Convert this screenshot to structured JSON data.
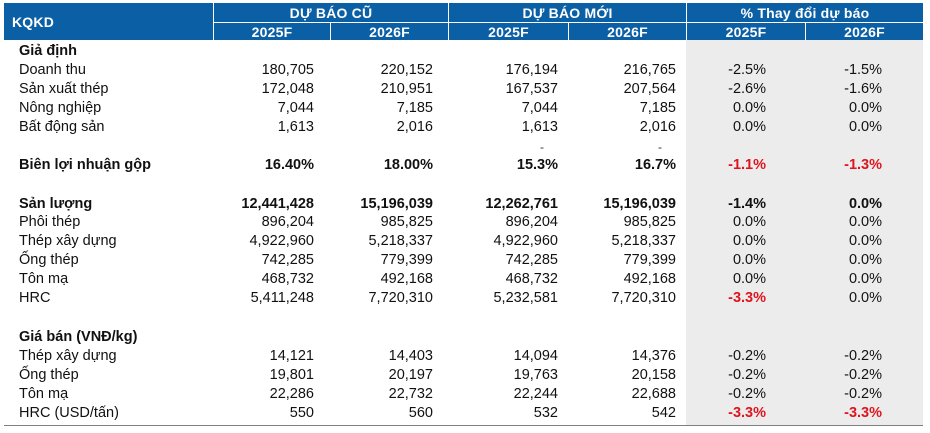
{
  "header": {
    "corner": "KQKD",
    "groups": [
      "DỰ BÁO CŨ",
      "DỰ BÁO MỚI",
      "% Thay đổi dự báo"
    ],
    "years": [
      "2025F",
      "2026F",
      "2025F",
      "2026F",
      "2025F",
      "2026F"
    ]
  },
  "rows": [
    {
      "label": "Giả định",
      "style": "section",
      "values": [
        "",
        "",
        "",
        "",
        "",
        ""
      ]
    },
    {
      "label": "Doanh thu",
      "style": "normal",
      "values": [
        "180,705",
        "220,152",
        "176,194",
        "216,765",
        "-2.5%",
        "-1.5%"
      ]
    },
    {
      "label": "Sản xuất thép",
      "style": "normal",
      "values": [
        "172,048",
        "210,951",
        "167,537",
        "207,564",
        "-2.6%",
        "-1.6%"
      ]
    },
    {
      "label": "Nông nghiệp",
      "style": "normal",
      "values": [
        "7,044",
        "7,185",
        "7,044",
        "7,185",
        "0.0%",
        "0.0%"
      ]
    },
    {
      "label": "Bất động sản",
      "style": "normal",
      "values": [
        "1,613",
        "2,016",
        "1,613",
        "2,016",
        "0.0%",
        "0.0%"
      ]
    },
    {
      "label": "Biên lợi nhuận gộp",
      "style": "bold",
      "values": [
        "16.40%",
        "18.00%",
        "15.3%",
        "16.7%",
        "-1.1%",
        "-1.3%"
      ],
      "red": [
        4,
        5
      ]
    },
    {
      "label": "Sản lượng",
      "style": "bold",
      "values": [
        "12,441,428",
        "15,196,039",
        "12,262,761",
        "15,196,039",
        "-1.4%",
        "0.0%"
      ]
    },
    {
      "label": "Phôi thép",
      "style": "normal",
      "values": [
        "896,204",
        "985,825",
        "896,204",
        "985,825",
        "0.0%",
        "0.0%"
      ]
    },
    {
      "label": "Thép xây dựng",
      "style": "normal",
      "values": [
        "4,922,960",
        "5,218,337",
        "4,922,960",
        "5,218,337",
        "0.0%",
        "0.0%"
      ]
    },
    {
      "label": "Ống thép",
      "style": "normal",
      "values": [
        "742,285",
        "779,399",
        "742,285",
        "779,399",
        "0.0%",
        "0.0%"
      ]
    },
    {
      "label": "Tôn mạ",
      "style": "normal",
      "values": [
        "468,732",
        "492,168",
        "468,732",
        "492,168",
        "0.0%",
        "0.0%"
      ]
    },
    {
      "label": "HRC",
      "style": "normal",
      "values": [
        "5,411,248",
        "7,720,310",
        "5,232,581",
        "7,720,310",
        "-3.3%",
        "0.0%"
      ],
      "red": [
        4
      ]
    },
    {
      "label": "Giá bán (VNĐ/kg)",
      "style": "section",
      "values": [
        "",
        "",
        "",
        "",
        "",
        ""
      ]
    },
    {
      "label": "Thép xây dựng",
      "style": "normal",
      "values": [
        "14,121",
        "14,403",
        "14,094",
        "14,376",
        "-0.2%",
        "-0.2%"
      ]
    },
    {
      "label": "Ống thép",
      "style": "normal",
      "values": [
        "19,801",
        "20,197",
        "19,763",
        "20,158",
        "-0.2%",
        "-0.2%"
      ]
    },
    {
      "label": "Tôn mạ",
      "style": "normal",
      "values": [
        "22,286",
        "22,732",
        "22,244",
        "22,688",
        "-0.2%",
        "-0.2%"
      ]
    },
    {
      "label": "HRC (USD/tấn)",
      "style": "normal",
      "values": [
        "550",
        "560",
        "532",
        "542",
        "-3.3%",
        "-3.3%"
      ],
      "red": [
        4,
        5
      ]
    }
  ],
  "dashes": [
    "-",
    "-"
  ]
}
